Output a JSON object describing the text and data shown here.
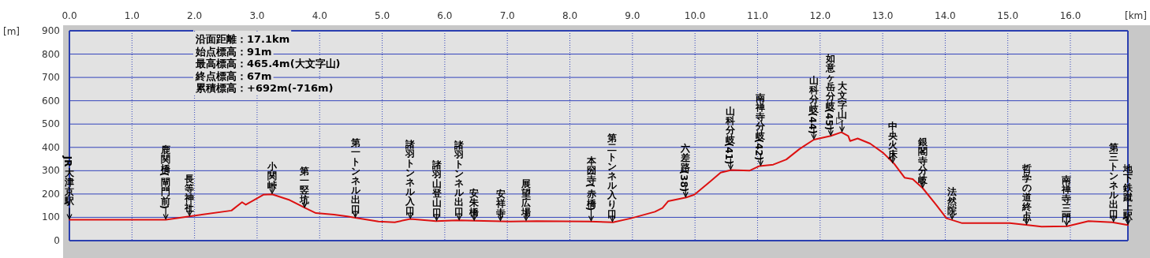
{
  "chart_data": {
    "type": "line",
    "xlabel": "[km]",
    "ylabel": "[m]",
    "color": "#dd1111",
    "marker": "none",
    "line_style": "solid",
    "grid": true,
    "legend": false,
    "xlim": [
      0,
      16.92
    ],
    "ylim": [
      0,
      900
    ],
    "xticks": [
      {
        "value": 0,
        "label": "0.0"
      },
      {
        "value": 1,
        "label": "1.0"
      },
      {
        "value": 2,
        "label": "2.0"
      },
      {
        "value": 3,
        "label": "3.0"
      },
      {
        "value": 4,
        "label": "4.0"
      },
      {
        "value": 5,
        "label": "5.0"
      },
      {
        "value": 6,
        "label": "6.0"
      },
      {
        "value": 7,
        "label": "7.0"
      },
      {
        "value": 8,
        "label": "8.0"
      },
      {
        "value": 9,
        "label": "9.0"
      },
      {
        "value": 10,
        "label": "10.0"
      },
      {
        "value": 11,
        "label": "11.0"
      },
      {
        "value": 12,
        "label": "12.0"
      },
      {
        "value": 13,
        "label": "13.0"
      },
      {
        "value": 14,
        "label": "14.0"
      },
      {
        "value": 15,
        "label": "15.0"
      },
      {
        "value": 16,
        "label": "16.0"
      }
    ],
    "yticks": [
      0,
      100,
      200,
      300,
      400,
      500,
      600,
      700,
      800,
      900
    ],
    "x": [
      0,
      1.54,
      1.92,
      2.59,
      2.76,
      2.82,
      3.1,
      3.24,
      3.52,
      3.77,
      3.94,
      4.23,
      4.44,
      4.57,
      4.94,
      5.2,
      5.45,
      5.86,
      6.2,
      7.05,
      7.47,
      8.31,
      8.69,
      8.98,
      9.36,
      9.48,
      9.57,
      9.86,
      9.99,
      10.24,
      10.41,
      10.58,
      10.87,
      11.03,
      11.25,
      11.46,
      11.67,
      11.9,
      12.17,
      12.34,
      12.45,
      12.48,
      12.6,
      12.8,
      13.01,
      13.18,
      13.35,
      13.48,
      13.64,
      13.86,
      14.02,
      14.27,
      15.03,
      15.32,
      15.54,
      15.95,
      16.29,
      16.67,
      16.92
    ],
    "values": [
      90,
      90,
      104,
      129,
      165,
      154,
      197,
      199,
      174,
      140,
      118,
      112,
      104,
      98,
      82,
      79,
      93,
      84,
      87,
      82,
      84,
      82,
      79,
      96,
      124,
      140,
      169,
      185,
      197,
      253,
      292,
      303,
      300,
      320,
      326,
      348,
      393,
      433,
      449,
      465,
      449,
      427,
      438,
      416,
      376,
      331,
      270,
      264,
      225,
      152,
      96,
      75,
      75,
      67,
      60,
      62,
      84,
      79,
      67
    ],
    "annotations": [
      "沿面距離：17.1km",
      "始点標高：91m",
      "最高標高：465.4m(大文字山)",
      "終点標高：67m",
      "累積標高：+692m(-716m)",
      {
        "text": "JR大津京駅",
        "x": 0,
        "y": 90
      },
      {
        "text": "鹿関橋(閘門前)",
        "x": 1.54,
        "y": 90
      },
      {
        "text": "長等神社",
        "x": 1.92,
        "y": 104
      },
      {
        "text": "小関峠",
        "x": 3.24,
        "y": 199
      },
      {
        "text": "第一竪坑",
        "x": 3.76,
        "y": 140
      },
      {
        "text": "第一トンネル出口",
        "x": 4.57,
        "y": 98
      },
      {
        "text": "諸羽トンネル入口",
        "x": 5.45,
        "y": 93
      },
      {
        "text": "諸羽山登山口",
        "x": 5.87,
        "y": 84
      },
      {
        "text": "諸羽トンネル出口",
        "x": 6.23,
        "y": 87
      },
      {
        "text": "安朱橋",
        "x": 6.47,
        "y": 85
      },
      {
        "text": "安祥寺",
        "x": 6.89,
        "y": 83
      },
      {
        "text": "展望広場",
        "x": 7.3,
        "y": 84
      },
      {
        "text": "本圀寺(赤橋)",
        "x": 8.34,
        "y": 82
      },
      {
        "text": "第二トンネル入り口",
        "x": 8.68,
        "y": 79
      },
      {
        "text": "六差路(38)",
        "x": 9.85,
        "y": 185
      },
      {
        "text": "山科分岐(41)",
        "x": 10.57,
        "y": 303
      },
      {
        "text": "南禅寺分岐(42)",
        "x": 11.05,
        "y": 320
      },
      {
        "text": "山科分岐(44)",
        "x": 11.9,
        "y": 433
      },
      {
        "text": "如意ヶ岳分岐(45)",
        "x": 12.17,
        "y": 449
      },
      {
        "text": "大文字山△",
        "x": 12.35,
        "y": 465
      },
      {
        "text": "中央火床",
        "x": 13.16,
        "y": 331
      },
      {
        "text": "銀閣寺分岐",
        "x": 13.64,
        "y": 225
      },
      {
        "text": "法然院",
        "x": 14.11,
        "y": 90
      },
      {
        "text": "哲学の道終点",
        "x": 15.3,
        "y": 68
      },
      {
        "text": "南禅寺三門",
        "x": 15.94,
        "y": 62
      },
      {
        "text": "第三トンネル出口",
        "x": 16.69,
        "y": 79
      },
      {
        "text": "地下鉄蹴上駅",
        "x": 16.92,
        "y": 67
      }
    ]
  }
}
